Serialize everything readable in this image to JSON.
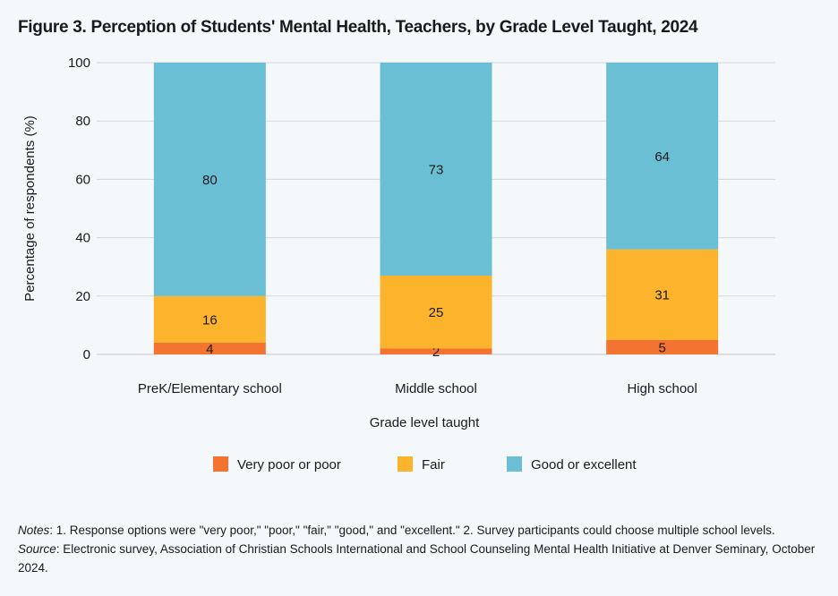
{
  "chart_data": {
    "type": "bar",
    "stacked": true,
    "title": "Figure 3. Perception of Students' Mental Health, Teachers, by Grade Level Taught, 2024",
    "xlabel": "Grade level taught",
    "ylabel": "Percentage of respondents (%)",
    "ylim": [
      0,
      100
    ],
    "yticks": [
      0,
      20,
      40,
      60,
      80,
      100
    ],
    "grid": true,
    "legend": "bottom",
    "categories": [
      "PreK/Elementary school",
      "Middle school",
      "High school"
    ],
    "series": [
      {
        "name": "Very poor or poor",
        "values": [
          4,
          2,
          5
        ],
        "color": "#f47330"
      },
      {
        "name": "Fair",
        "values": [
          16,
          25,
          31
        ],
        "color": "#fcb42c"
      },
      {
        "name": "Good or excellent",
        "values": [
          80,
          73,
          64
        ],
        "color": "#6bbfd4"
      }
    ]
  },
  "notes": {
    "notes_label": "Notes",
    "notes_text": ": 1. Response options were \"very poor,\" \"poor,\" \"fair,\" \"good,\" and \"excellent.\" 2. Survey participants could choose multiple school levels.",
    "source_label": "Source",
    "source_text": ": Electronic survey, Association of Christian Schools International and School Counseling Mental Health Initiative at Denver Seminary, October 2024."
  }
}
